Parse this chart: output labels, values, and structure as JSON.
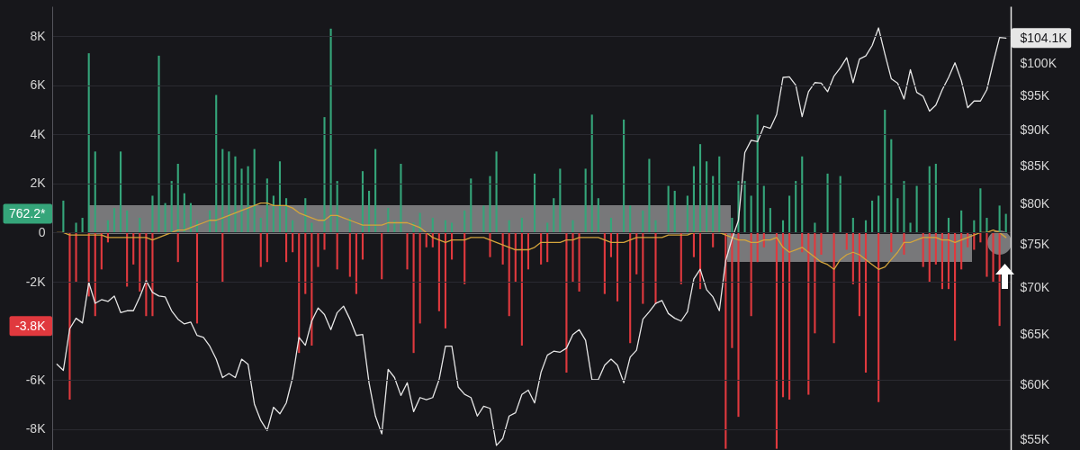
{
  "chart_data": {
    "type": "bar",
    "stacked": true,
    "log": "y2",
    "grid": "y",
    "categories": [
      null,
      null,
      null,
      null,
      null,
      null,
      null,
      null,
      null,
      null,
      null,
      null,
      null,
      null,
      null,
      null,
      null,
      null,
      null,
      null,
      null,
      null,
      null,
      null,
      null,
      null,
      null,
      null,
      null,
      null,
      null,
      null,
      null,
      null,
      null,
      null,
      null,
      null,
      null,
      null,
      null,
      null,
      null,
      null,
      null,
      null,
      null,
      null,
      null,
      null,
      null,
      null,
      null,
      null,
      null,
      null,
      null,
      null,
      null,
      null,
      null,
      null,
      null,
      null,
      null,
      null,
      null,
      null,
      null,
      null,
      null,
      null,
      null,
      null,
      null,
      null,
      null,
      null,
      null,
      null,
      null,
      null,
      null,
      null,
      null,
      null,
      null,
      null,
      null,
      null,
      null,
      null,
      null,
      null,
      null,
      null,
      null,
      null,
      null,
      null,
      null,
      null,
      null,
      null,
      null,
      null,
      null,
      null,
      null,
      null,
      null,
      null,
      null,
      null,
      null,
      null,
      null,
      null,
      null,
      null,
      null,
      null,
      null,
      null,
      null,
      null,
      null,
      null,
      null,
      null,
      null,
      null,
      null,
      null,
      null,
      null,
      null,
      null,
      null,
      null,
      null,
      null,
      null,
      null,
      null,
      null,
      null,
      null,
      null,
      null
    ],
    "series": [
      {
        "color": "#35a57a",
        "values": [
          null,
          1300,
          null,
          400,
          600,
          7300,
          3300,
          null,
          500,
          1000,
          3300,
          900,
          null,
          600,
          null,
          1500,
          7200,
          1200,
          2100,
          2800,
          1600,
          1200,
          500,
          null,
          900,
          5600,
          3400,
          3300,
          3100,
          2600,
          2700,
          3400,
          600,
          2200,
          1500,
          2900,
          1400,
          500,
          null,
          1400,
          400,
          null,
          4700,
          8300,
          2100,
          null,
          600,
          null,
          2500,
          1700,
          3400,
          null,
          1000,
          500,
          2800,
          null,
          400,
          800,
          null,
          600,
          null,
          500,
          400,
          null,
          900,
          2200,
          null,
          1100,
          2300,
          3300,
          null,
          500,
          null,
          600,
          null,
          2400,
          null,
          400,
          1400,
          2600,
          null,
          500,
          null,
          2600,
          4800,
          1400,
          null,
          600,
          null,
          4600,
          1100,
          null,
          900,
          3000,
          500,
          null,
          1900,
          1700,
          null,
          1500,
          2700,
          3600,
          2900,
          2300,
          3100,
          null,
          600,
          2100,
          2100,
          1500,
          4800,
          1900,
          1000,
          null,
          500,
          1500,
          2100,
          3100,
          null,
          400,
          null,
          2400,
          null,
          2300,
          null,
          600,
          null,
          500,
          1300,
          1500,
          5000,
          3800,
          1400,
          2100,
          400,
          1900,
          null,
          2700,
          2800,
          null,
          600,
          null,
          900,
          null,
          500,
          1800,
          600,
          null,
          1100,
          762.2
        ]
      },
      {
        "color": "#e0393e",
        "values": [
          null,
          null,
          -6800,
          -2000,
          null,
          -2600,
          -3400,
          -1500,
          -400,
          null,
          null,
          -2200,
          -1300,
          -2400,
          -3400,
          -3400,
          null,
          null,
          null,
          -1200,
          null,
          null,
          -3700,
          null,
          null,
          null,
          -2000,
          null,
          null,
          null,
          null,
          null,
          -1400,
          -1200,
          null,
          null,
          -1200,
          -800,
          -4900,
          -2500,
          -4600,
          -1400,
          -700,
          null,
          -1500,
          null,
          -1800,
          -2500,
          -1100,
          null,
          null,
          -1900,
          null,
          null,
          null,
          -1500,
          -4900,
          -3700,
          -600,
          -600,
          -3200,
          -3900,
          -1100,
          null,
          -2100,
          null,
          null,
          null,
          -1000,
          null,
          -1300,
          -3400,
          -2000,
          -4600,
          -1500,
          null,
          -1300,
          -1200,
          null,
          null,
          -5700,
          -2000,
          -2400,
          null,
          null,
          null,
          -2500,
          -1000,
          -2800,
          null,
          -4500,
          -1700,
          -2900,
          null,
          -2900,
          null,
          null,
          null,
          -2100,
          null,
          -1000,
          -2300,
          null,
          -600,
          null,
          -8800,
          -4700,
          -7500,
          null,
          -3400,
          -1200,
          -600,
          null,
          -8800,
          -6700,
          -6800,
          null,
          -800,
          -6600,
          -4100,
          -900,
          null,
          -4500,
          null,
          -700,
          -2100,
          -3400,
          -5700,
          null,
          -6900,
          null,
          -800,
          null,
          -900,
          null,
          null,
          -1400,
          -2000,
          -1300,
          -2300,
          -2300,
          -4400,
          -1500,
          -600,
          -700,
          -400,
          -1800,
          -2000,
          -3800,
          null
        ]
      },
      {
        "type": "line",
        "color": "#d4a53c",
        "values": [
          0,
          0,
          -100,
          -100,
          -100,
          -100,
          -100,
          -100,
          -200,
          -200,
          -200,
          -200,
          -200,
          -200,
          -200,
          -300,
          -200,
          -100,
          0,
          100,
          100,
          200,
          300,
          400,
          500,
          500,
          600,
          700,
          800,
          900,
          1000,
          1100,
          1200,
          1200,
          1100,
          1100,
          1100,
          1000,
          800,
          700,
          600,
          500,
          500,
          700,
          700,
          600,
          500,
          400,
          300,
          300,
          300,
          300,
          400,
          400,
          400,
          400,
          300,
          200,
          0,
          -200,
          -300,
          -400,
          -300,
          -300,
          -300,
          -200,
          -200,
          -200,
          -300,
          -400,
          -500,
          -600,
          -700,
          -700,
          -700,
          -600,
          -400,
          -400,
          -400,
          -400,
          -300,
          -300,
          -200,
          -200,
          -200,
          -200,
          -300,
          -400,
          -400,
          -400,
          -300,
          -200,
          -200,
          -200,
          -200,
          -200,
          -100,
          -100,
          -100,
          -100,
          0,
          0,
          0,
          0,
          0,
          -100,
          -200,
          -300,
          -300,
          -400,
          -400,
          -300,
          -300,
          -200,
          -600,
          -800,
          -700,
          -600,
          -800,
          -1000,
          -1200,
          -1300,
          -1500,
          -1100,
          -900,
          -800,
          -900,
          -1100,
          -1300,
          -1500,
          -1400,
          -1100,
          -800,
          -400,
          -400,
          -300,
          -200,
          -200,
          -200,
          -300,
          -300,
          -400,
          -300,
          -200,
          -100,
          0,
          0,
          100,
          0,
          -200
        ]
      },
      {
        "type": "line",
        "color": "#e6e6e6",
        "axis": "y2",
        "values": [
          62.0,
          61.4,
          65.6,
          66.7,
          66.2,
          70.6,
          68.3,
          68.7,
          68.5,
          69.1,
          67.3,
          67.5,
          67.5,
          69.0,
          70.8,
          69.5,
          69.1,
          69.0,
          67.5,
          66.6,
          66.1,
          66.3,
          64.9,
          64.7,
          63.8,
          62.5,
          60.7,
          61.1,
          60.7,
          62.5,
          62.0,
          58.2,
          56.7,
          55.8,
          57.9,
          57.3,
          58.3,
          60.7,
          64.7,
          63.9,
          66.4,
          67.8,
          67.1,
          65.5,
          67.3,
          68.0,
          66.6,
          64.9,
          65.0,
          60.2,
          57.1,
          55.5,
          61.5,
          60.7,
          59.0,
          60.2,
          57.5,
          58.8,
          58.6,
          58.8,
          60.5,
          63.8,
          63.8,
          59.8,
          59.1,
          58.8,
          57.1,
          58.0,
          57.8,
          54.5,
          55.1,
          57.1,
          57.4,
          59.1,
          59.5,
          58.3,
          61.2,
          62.9,
          63.3,
          63.2,
          63.6,
          65.0,
          65.5,
          64.4,
          60.5,
          60.5,
          61.9,
          62.5,
          61.9,
          60.2,
          62.7,
          63.4,
          66.6,
          67.4,
          68.3,
          68.6,
          67.2,
          66.7,
          66.4,
          67.4,
          71.0,
          72.1,
          69.8,
          69.0,
          67.5,
          73.1,
          75.7,
          77.9,
          86.8,
          88.5,
          88.3,
          90.5,
          90.2,
          92.2,
          97.8,
          97.9,
          96.6,
          91.9,
          95.6,
          97.0,
          96.9,
          95.6,
          98.0,
          99.3,
          100.9,
          97.0,
          100.7,
          101.2,
          102.9,
          105.8,
          101.5,
          97.6,
          96.9,
          94.5,
          99.0,
          95.5,
          94.9,
          92.7,
          93.6,
          95.9,
          97.8,
          100.1,
          97.3,
          93.2,
          94.2,
          94.2,
          95.9,
          100.1,
          104.2,
          104.1
        ]
      }
    ],
    "ylim": [
      -8850,
      9210
    ],
    "yticks": [
      {
        "value": 8000,
        "label": "8K"
      },
      {
        "value": 6000,
        "label": "6K"
      },
      {
        "value": 4000,
        "label": "4K"
      },
      {
        "value": 2000,
        "label": "2K"
      },
      {
        "value": 762.2,
        "label": "762.2*"
      },
      0,
      {
        "value": -2000,
        "label": "-2K"
      },
      {
        "value": -3800,
        "label": "-3.8K"
      },
      {
        "value": -6000,
        "label": "-6K"
      },
      {
        "value": -8000,
        "label": "-8K"
      }
    ],
    "y2lim": [
      54.1,
      109.5
    ],
    "y2ticks": [
      {
        "value": 55,
        "label": "$55K"
      },
      {
        "value": 60,
        "label": "$60K"
      },
      {
        "value": 65,
        "label": "$65K"
      },
      {
        "value": 70,
        "label": "$70K"
      },
      {
        "value": 75,
        "label": "$75K"
      },
      {
        "value": 80,
        "label": "$80K"
      },
      {
        "value": 85,
        "label": "$85K"
      },
      {
        "value": 90,
        "label": "$90K"
      },
      {
        "value": 95,
        "label": "$95K"
      },
      {
        "value": 100,
        "label": "$100K"
      },
      {
        "value": 104.1,
        "label": "$104.1K"
      }
    ]
  }
}
